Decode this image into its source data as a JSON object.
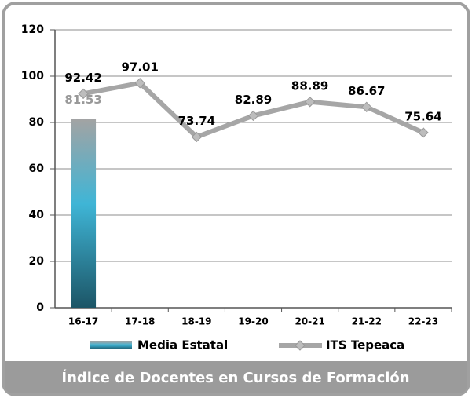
{
  "chart_data": {
    "type": "bar-line",
    "title": "Índice de Docentes en Cursos de Formación",
    "categories": [
      "16-17",
      "17-18",
      "18-19",
      "19-20",
      "20-21",
      "21-22",
      "22-23"
    ],
    "series": [
      {
        "name": "Media Estatal",
        "type": "bar",
        "color": "#3fb5d6",
        "values": [
          81.53,
          null,
          null,
          null,
          null,
          null,
          null
        ]
      },
      {
        "name": "ITS Tepeaca",
        "type": "line",
        "color": "#a6a6a6",
        "values": [
          92.42,
          97.01,
          73.74,
          82.89,
          88.89,
          86.67,
          75.64
        ]
      }
    ],
    "ylim": [
      0,
      120
    ],
    "yticks": [
      0,
      20,
      40,
      60,
      80,
      100,
      120
    ],
    "grid": true,
    "legend": "bottom"
  }
}
